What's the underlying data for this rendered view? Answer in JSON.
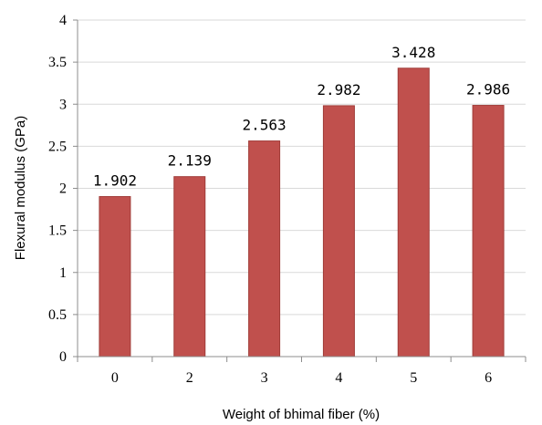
{
  "chart_data": {
    "type": "bar",
    "title": "",
    "xlabel": "Weight of bhimal fiber (%)",
    "ylabel": "Flexural modulus (GPa)",
    "categories": [
      "0",
      "2",
      "3",
      "4",
      "5",
      "6"
    ],
    "values": [
      1.902,
      2.139,
      2.563,
      2.982,
      3.428,
      2.986
    ],
    "data_labels": [
      "1.902",
      "2.139",
      "2.563",
      "2.982",
      "3.428",
      "2.986"
    ],
    "ylim": [
      0,
      4
    ],
    "yticks": [
      "0",
      "0.5",
      "1",
      "1.5",
      "2",
      "2.5",
      "3",
      "3.5",
      "4"
    ],
    "ytick_values": [
      0,
      0.5,
      1,
      1.5,
      2,
      2.5,
      3,
      3.5,
      4
    ],
    "grid": true,
    "legend": "none",
    "bar_color": "#c0504d",
    "bar_edge_color": "#a03c39"
  }
}
